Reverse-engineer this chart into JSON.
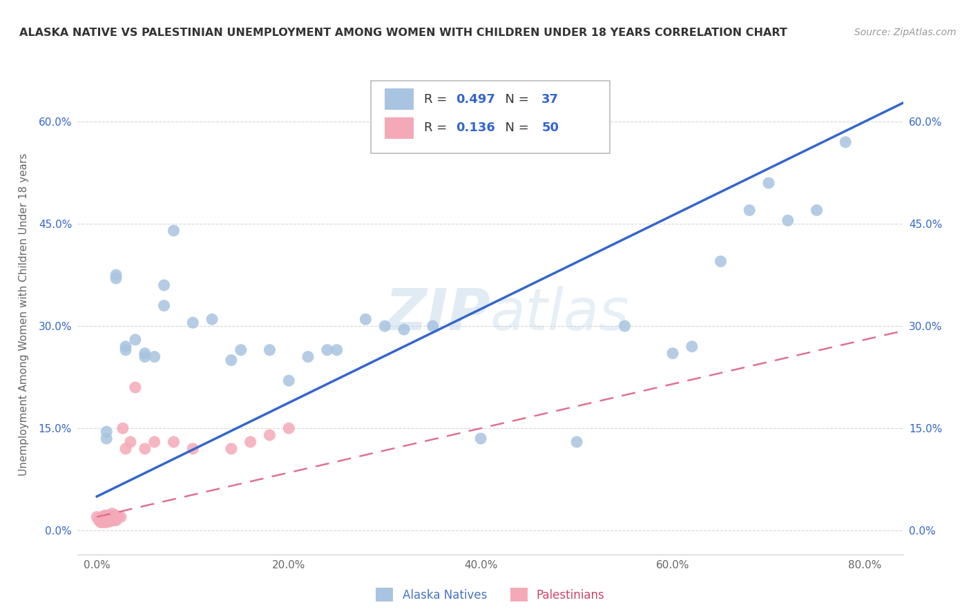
{
  "title": "ALASKA NATIVE VS PALESTINIAN UNEMPLOYMENT AMONG WOMEN WITH CHILDREN UNDER 18 YEARS CORRELATION CHART",
  "source": "Source: ZipAtlas.com",
  "ylabel": "Unemployment Among Women with Children Under 18 years",
  "xlabel_ticks": [
    "0.0%",
    "20.0%",
    "40.0%",
    "60.0%",
    "80.0%"
  ],
  "ylabel_ticks": [
    "0.0%",
    "15.0%",
    "30.0%",
    "45.0%",
    "60.0%"
  ],
  "x_tick_vals": [
    0.0,
    0.2,
    0.4,
    0.6,
    0.8
  ],
  "y_tick_vals": [
    0.0,
    0.15,
    0.3,
    0.45,
    0.6
  ],
  "xlim": [
    -0.02,
    0.84
  ],
  "ylim": [
    -0.035,
    0.67
  ],
  "alaska_R": 0.497,
  "alaska_N": 37,
  "palestinian_R": 0.136,
  "palestinian_N": 50,
  "alaska_color": "#a8c4e0",
  "palestinian_color": "#f4a9b8",
  "alaska_line_color": "#3366cc",
  "palestinian_line_color": "#e07090",
  "watermark_color": "#c5d8ea",
  "background_color": "#ffffff",
  "grid_color": "#cccccc",
  "alaska_x": [
    0.01,
    0.01,
    0.02,
    0.02,
    0.03,
    0.03,
    0.04,
    0.05,
    0.05,
    0.06,
    0.07,
    0.07,
    0.08,
    0.1,
    0.12,
    0.14,
    0.15,
    0.18,
    0.2,
    0.22,
    0.24,
    0.25,
    0.28,
    0.3,
    0.32,
    0.35,
    0.4,
    0.5,
    0.55,
    0.6,
    0.62,
    0.65,
    0.68,
    0.7,
    0.72,
    0.75,
    0.78
  ],
  "alaska_y": [
    0.145,
    0.135,
    0.375,
    0.37,
    0.27,
    0.265,
    0.28,
    0.26,
    0.255,
    0.255,
    0.33,
    0.36,
    0.44,
    0.305,
    0.31,
    0.25,
    0.265,
    0.265,
    0.22,
    0.255,
    0.265,
    0.265,
    0.31,
    0.3,
    0.295,
    0.3,
    0.135,
    0.13,
    0.3,
    0.26,
    0.27,
    0.395,
    0.47,
    0.51,
    0.455,
    0.47,
    0.57
  ],
  "palestinian_x": [
    0.0,
    0.002,
    0.003,
    0.004,
    0.005,
    0.005,
    0.006,
    0.006,
    0.007,
    0.007,
    0.008,
    0.008,
    0.009,
    0.009,
    0.01,
    0.01,
    0.01,
    0.011,
    0.011,
    0.012,
    0.012,
    0.013,
    0.013,
    0.014,
    0.014,
    0.015,
    0.015,
    0.016,
    0.016,
    0.017,
    0.018,
    0.018,
    0.019,
    0.02,
    0.02,
    0.021,
    0.022,
    0.025,
    0.027,
    0.03,
    0.035,
    0.04,
    0.05,
    0.06,
    0.08,
    0.1,
    0.14,
    0.16,
    0.18,
    0.2
  ],
  "palestinian_y": [
    0.02,
    0.015,
    0.018,
    0.012,
    0.02,
    0.015,
    0.018,
    0.012,
    0.015,
    0.02,
    0.015,
    0.022,
    0.012,
    0.018,
    0.018,
    0.022,
    0.015,
    0.018,
    0.013,
    0.015,
    0.022,
    0.018,
    0.013,
    0.02,
    0.015,
    0.018,
    0.015,
    0.025,
    0.015,
    0.02,
    0.015,
    0.022,
    0.018,
    0.022,
    0.015,
    0.018,
    0.02,
    0.02,
    0.15,
    0.12,
    0.13,
    0.21,
    0.12,
    0.13,
    0.13,
    0.12,
    0.12,
    0.13,
    0.14,
    0.15
  ],
  "legend_R_color": "#3366cc",
  "legend_N_color": "#3366cc",
  "title_color": "#333333",
  "source_color": "#999999",
  "ylabel_color": "#666666",
  "tick_color_left": "#3366cc",
  "tick_color_bottom": "#666666"
}
